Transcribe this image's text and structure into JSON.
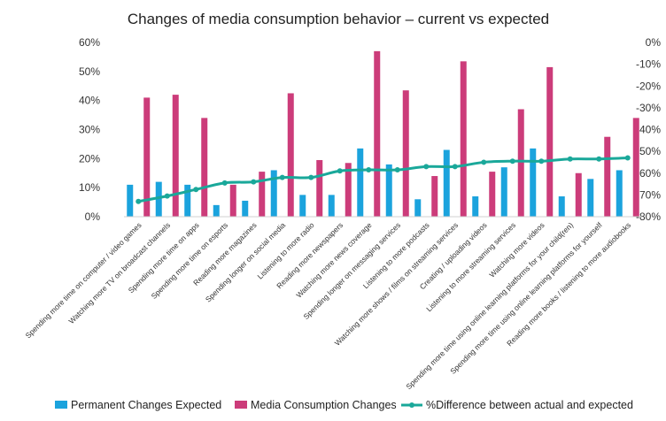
{
  "chart_data": {
    "type": "bar",
    "title": "Changes of media consumption behavior – current vs expected",
    "categories": [
      "Spending more time on computer / video games",
      "Watching more TV on broadcast channels",
      "Spending more time on apps",
      "Spending more time on esports",
      "Reading more magazines",
      "Spending longer on social media",
      "Listening to more radio",
      "Reading more newspapers",
      "Watching more news coverage",
      "Spending longer on messaging services",
      "Listening to more podcasts",
      "Watching more shows / films on streaming services",
      "Creating / uploading videos",
      "Listening to more streaming services",
      "Watching more videos",
      "Spending more time using online learning platforms for your child(ren)",
      "Spending more time using online learning platforms for yourself",
      "Reading more books / listening to more audiobooks"
    ],
    "series": [
      {
        "name": "Permanent Changes Expected",
        "axis": "left",
        "color": "#1ba3dd",
        "values": [
          11,
          12,
          11,
          4,
          5.5,
          16,
          7.5,
          7.5,
          23.5,
          18,
          6,
          23,
          7,
          17,
          23.5,
          7,
          13,
          16
        ]
      },
      {
        "name": "Media Consumption Changes",
        "axis": "left",
        "color": "#cc3c7a",
        "values": [
          41,
          42,
          34,
          11,
          15.5,
          42.5,
          19.5,
          18.5,
          57,
          43.5,
          14,
          53.5,
          15.5,
          37,
          51.5,
          15,
          27.5,
          34
        ]
      },
      {
        "name": "%Difference between actual and expected",
        "axis": "right",
        "type": "line",
        "color": "#1aa89a",
        "values": [
          -73,
          -70.5,
          -67.5,
          -64.5,
          -64,
          -62,
          -62,
          -59,
          -58.5,
          -58.5,
          -57,
          -57,
          -55,
          -54.5,
          -54.5,
          -53.5,
          -53.5,
          -53
        ]
      }
    ],
    "ylim_left": [
      0,
      60
    ],
    "ylim_right": [
      -80,
      0
    ],
    "yticks_left": [
      "0%",
      "10%",
      "20%",
      "30%",
      "40%",
      "50%",
      "60%"
    ],
    "yticks_right": [
      "0%",
      "-10%",
      "-20%",
      "-30%",
      "-40%",
      "-50%",
      "-60%",
      "-70%",
      "-80%"
    ],
    "grid": false,
    "legend_position": "bottom"
  }
}
